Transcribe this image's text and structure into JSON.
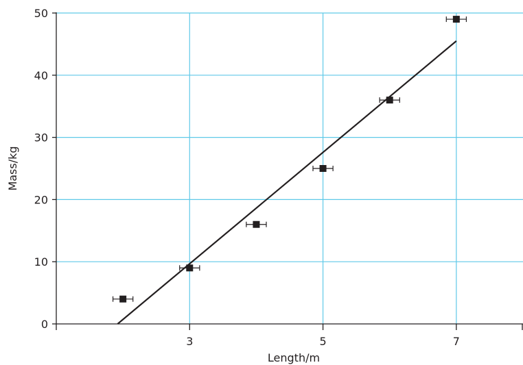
{
  "chart_data": {
    "type": "scatter",
    "title": "",
    "xlabel": "Length/m",
    "ylabel": "Mass/kg",
    "xlim": [
      1,
      8
    ],
    "ylim": [
      0,
      50
    ],
    "x_ticks": [
      1,
      3,
      5,
      7,
      8
    ],
    "x_tick_labels": [
      "",
      "3",
      "5",
      "7",
      ""
    ],
    "y_ticks": [
      0,
      10,
      20,
      30,
      40,
      50
    ],
    "y_tick_labels": [
      "0",
      "10",
      "20",
      "30",
      "40",
      "50"
    ],
    "x_gridlines": [
      3,
      5,
      7
    ],
    "y_gridlines": [
      10,
      20,
      30,
      40,
      50
    ],
    "grid": true,
    "grid_color": "#5fc9e8",
    "marker_color": "#231f20",
    "series": [
      {
        "marker": "square",
        "x": [
          2,
          3,
          4,
          5,
          6,
          7
        ],
        "y": [
          4,
          9,
          16,
          25,
          36,
          49
        ],
        "x_error": 0.15
      }
    ],
    "fit_line": {
      "x": [
        1.92,
        7.0
      ],
      "y": [
        0,
        45.5
      ]
    }
  }
}
